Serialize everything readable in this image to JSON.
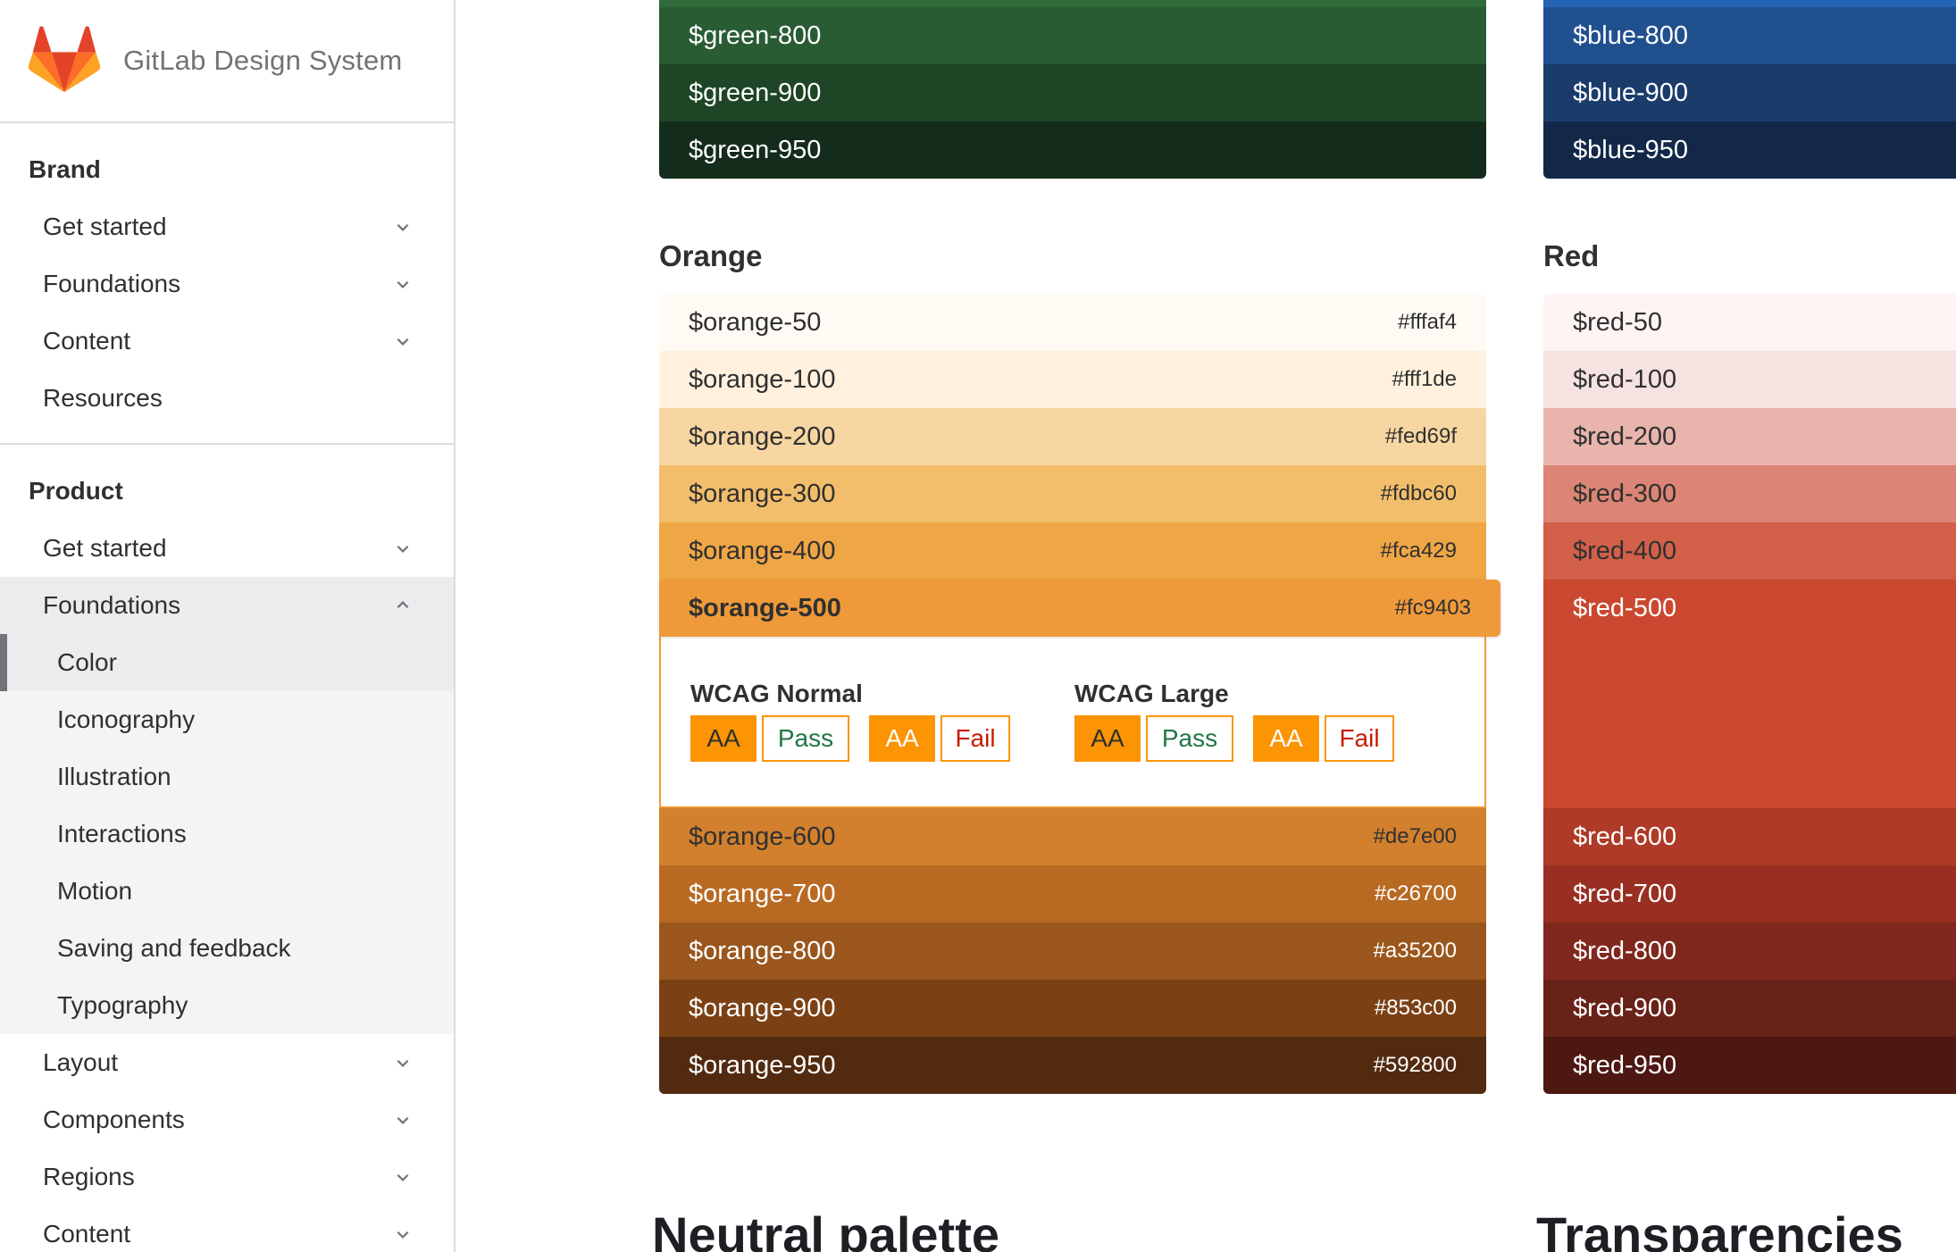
{
  "site": {
    "title": "GitLab Design System"
  },
  "sidebar": {
    "brand": {
      "title": "Brand",
      "items": [
        {
          "label": "Get started",
          "expandable": true
        },
        {
          "label": "Foundations",
          "expandable": true
        },
        {
          "label": "Content",
          "expandable": true
        },
        {
          "label": "Resources",
          "expandable": false
        }
      ]
    },
    "product": {
      "title": "Product",
      "items": [
        {
          "label": "Get started",
          "expandable": true
        },
        {
          "label": "Foundations",
          "expandable": true,
          "expanded": true
        },
        {
          "label": "Layout",
          "expandable": true
        },
        {
          "label": "Components",
          "expandable": true
        },
        {
          "label": "Regions",
          "expandable": true
        },
        {
          "label": "Content",
          "expandable": true
        }
      ],
      "foundations_children": [
        {
          "label": "Color",
          "active": true
        },
        {
          "label": "Iconography"
        },
        {
          "label": "Illustration"
        },
        {
          "label": "Interactions"
        },
        {
          "label": "Motion"
        },
        {
          "label": "Saving and feedback"
        },
        {
          "label": "Typography"
        }
      ]
    }
  },
  "top_green": [
    {
      "name": "$green-800",
      "bg": "#2a5c34",
      "fg": "#ffffff"
    },
    {
      "name": "$green-900",
      "bg": "#1e4526",
      "fg": "#ffffff"
    },
    {
      "name": "$green-950",
      "bg": "#142c1b",
      "fg": "#ffffff"
    }
  ],
  "top_blue": [
    {
      "name": "$blue-800",
      "bg": "#21508f",
      "fg": "#ffffff"
    },
    {
      "name": "$blue-900",
      "bg": "#1a3c6b",
      "fg": "#ffffff"
    },
    {
      "name": "$blue-950",
      "bg": "#132848",
      "fg": "#ffffff"
    }
  ],
  "orange": {
    "title": "Orange",
    "swatches": [
      {
        "name": "$orange-50",
        "hex": "#fffaf4",
        "bg": "#fffaf4",
        "fg": "#303030"
      },
      {
        "name": "$orange-100",
        "hex": "#fff1de",
        "bg": "#fff1de",
        "fg": "#303030"
      },
      {
        "name": "$orange-200",
        "hex": "#fed69f",
        "bg": "#f7d6a2",
        "fg": "#303030"
      },
      {
        "name": "$orange-300",
        "hex": "#fdbc60",
        "bg": "#f3be6b",
        "fg": "#303030"
      },
      {
        "name": "$orange-400",
        "hex": "#fca429",
        "bg": "#efa645",
        "fg": "#303030"
      },
      {
        "name": "$orange-500",
        "hex": "#fc9403",
        "bg": "#ef9a3a",
        "fg": "#303030",
        "selected": true
      },
      {
        "name": "$orange-600",
        "hex": "#de7e00",
        "bg": "#d2802d",
        "fg": "#303030"
      },
      {
        "name": "$orange-700",
        "hex": "#c26700",
        "bg": "#b86a23",
        "fg": "#ffffff"
      },
      {
        "name": "$orange-800",
        "hex": "#a35200",
        "bg": "#9a561c",
        "fg": "#ffffff"
      },
      {
        "name": "$orange-900",
        "hex": "#853c00",
        "bg": "#7b4115",
        "fg": "#ffffff"
      },
      {
        "name": "$orange-950",
        "hex": "#592800",
        "bg": "#522a10",
        "fg": "#ffffff"
      }
    ],
    "wcag": {
      "normal_title": "WCAG Normal",
      "large_title": "WCAG Large",
      "aa_label": "AA",
      "pass_label": "Pass",
      "fail_label": "Fail"
    }
  },
  "red": {
    "title": "Red",
    "swatches": [
      {
        "name": "$red-50",
        "bg": "#fdf4f3",
        "fg": "#303030"
      },
      {
        "name": "$red-100",
        "bg": "#f6e2e0",
        "fg": "#303030"
      },
      {
        "name": "$red-200",
        "bg": "#e8b4ac",
        "fg": "#303030"
      },
      {
        "name": "$red-300",
        "bg": "#dc8576",
        "fg": "#303030"
      },
      {
        "name": "$red-400",
        "bg": "#d26049",
        "fg": "#303030"
      },
      {
        "name": "$red-500",
        "bg": "#c9482f",
        "fg": "#ffffff",
        "expanded": true
      },
      {
        "name": "$red-600",
        "bg": "#ae3a27",
        "fg": "#ffffff"
      },
      {
        "name": "$red-700",
        "bg": "#982f22",
        "fg": "#ffffff"
      },
      {
        "name": "$red-800",
        "bg": "#80281d",
        "fg": "#ffffff"
      },
      {
        "name": "$red-900",
        "bg": "#682218",
        "fg": "#ffffff"
      },
      {
        "name": "$red-950",
        "bg": "#4d1712",
        "fg": "#ffffff"
      }
    ]
  },
  "headings": {
    "neutral": "Neutral palette",
    "transparencies": "Transparencies"
  }
}
